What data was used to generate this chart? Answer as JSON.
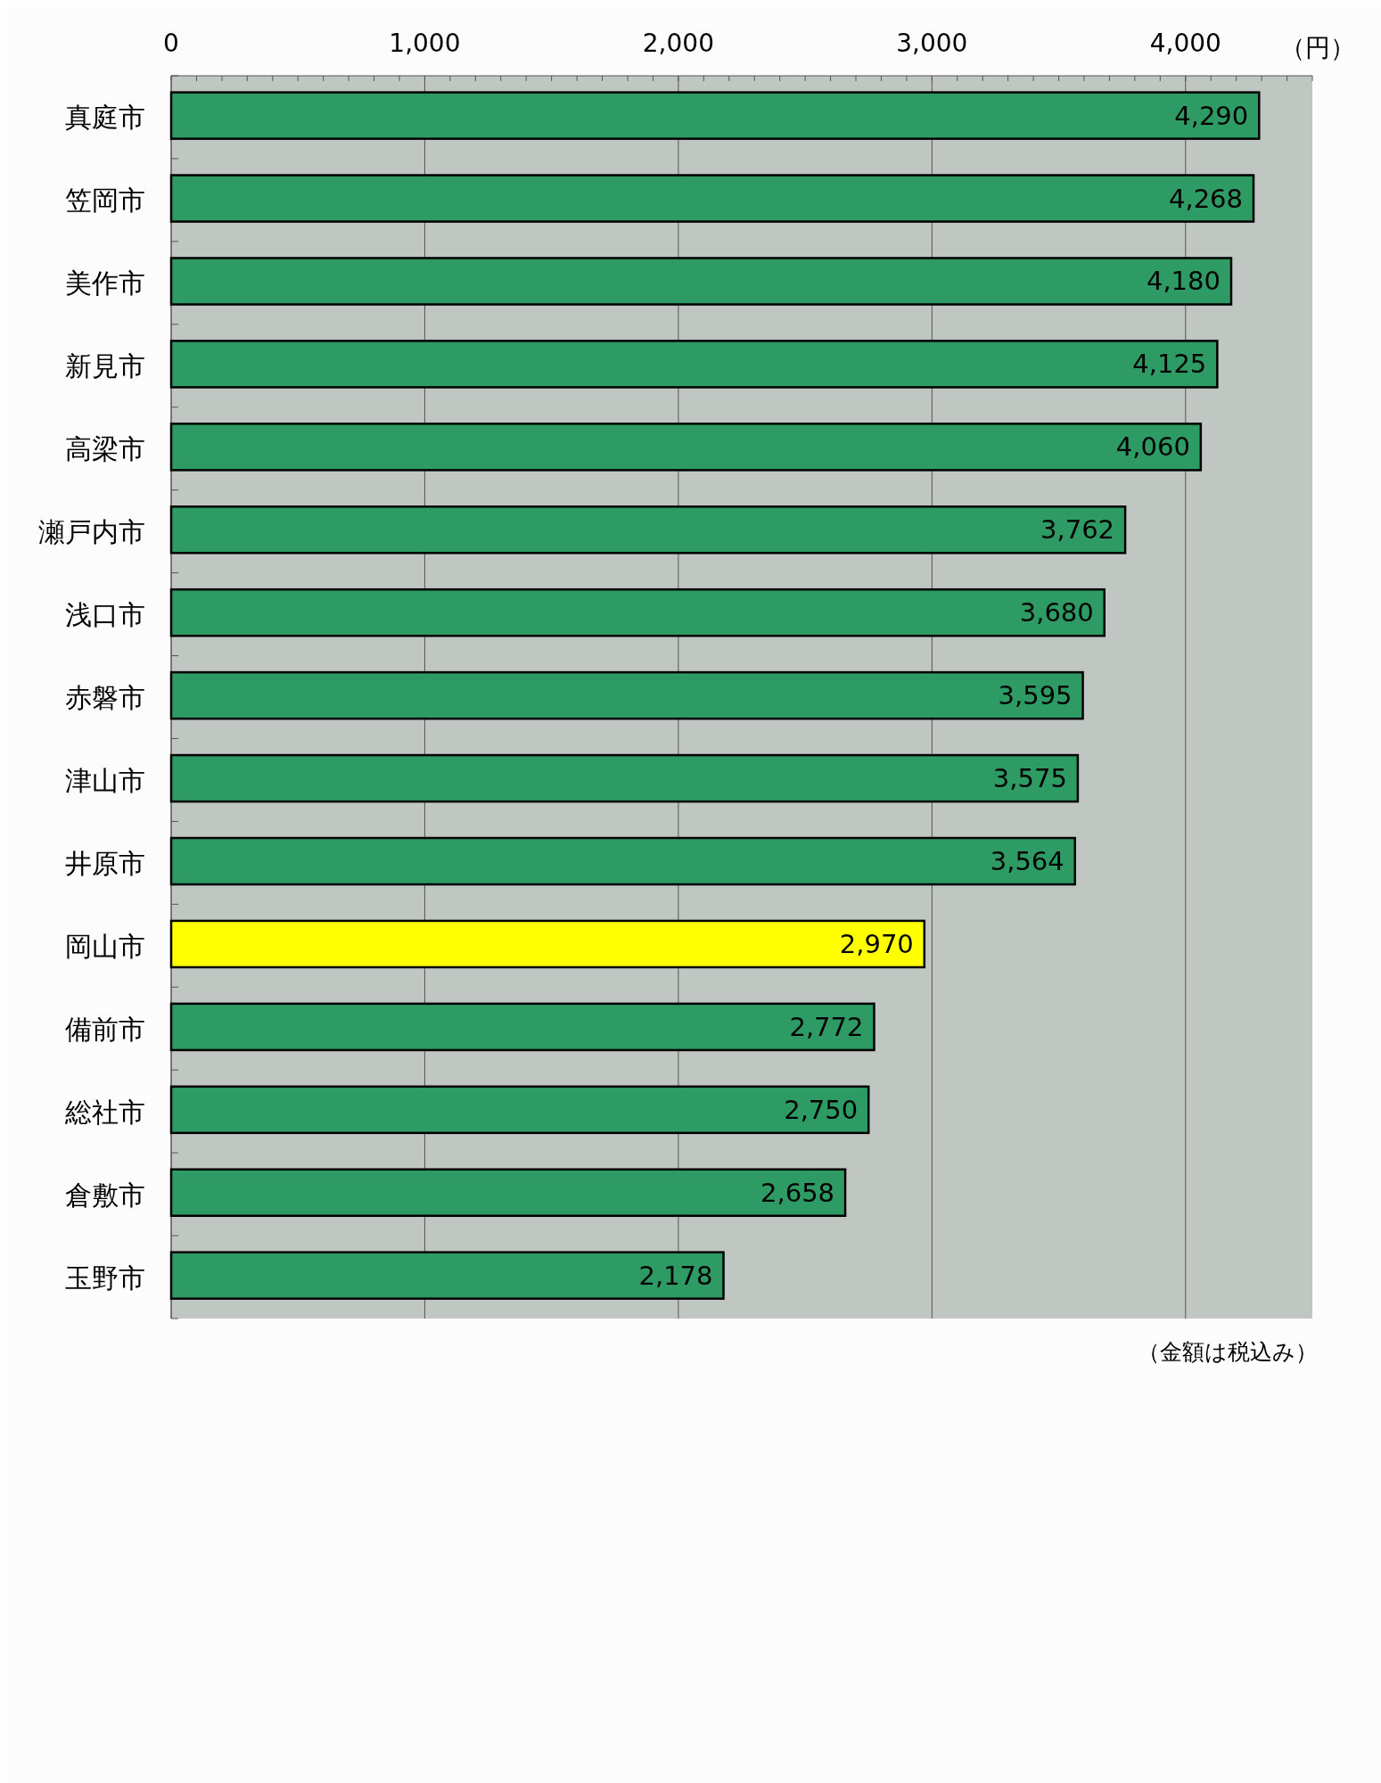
{
  "chart_data": {
    "type": "bar",
    "orientation": "horizontal",
    "xlabel": "（円）",
    "annotations": [
      "（金額は税込み）"
    ],
    "categories": [
      "真庭市",
      "笠岡市",
      "美作市",
      "新見市",
      "高梁市",
      "瀬戸内市",
      "浅口市",
      "赤磐市",
      "津山市",
      "井原市",
      "岡山市",
      "備前市",
      "総社市",
      "倉敷市",
      "玉野市"
    ],
    "values": [
      4290,
      4268,
      4180,
      4125,
      4060,
      3762,
      3680,
      3595,
      3575,
      3564,
      2970,
      2772,
      2750,
      2658,
      2178
    ],
    "colors": [
      "#2e9a64",
      "#2e9a64",
      "#2e9a64",
      "#2e9a64",
      "#2e9a64",
      "#2e9a64",
      "#2e9a64",
      "#2e9a64",
      "#2e9a64",
      "#2e9a64",
      "#ffff00",
      "#2e9a64",
      "#2e9a64",
      "#2e9a64",
      "#2e9a64"
    ],
    "xlim": [
      0,
      4500
    ],
    "xticks": [
      0,
      {
        "value": 1000,
        "label": "1,000"
      },
      {
        "value": 2000,
        "label": "2,000"
      },
      {
        "value": 3000,
        "label": "3,000"
      },
      {
        "value": 4000,
        "label": "4,000"
      }
    ],
    "value_labels": [
      "4,290",
      "4,268",
      "4,180",
      "4,125",
      "4,060",
      "3,762",
      "3,680",
      "3,595",
      "3,575",
      "3,564",
      "2,970",
      "2,772",
      "2,750",
      "2,658",
      "2,178"
    ],
    "grid": "x"
  }
}
